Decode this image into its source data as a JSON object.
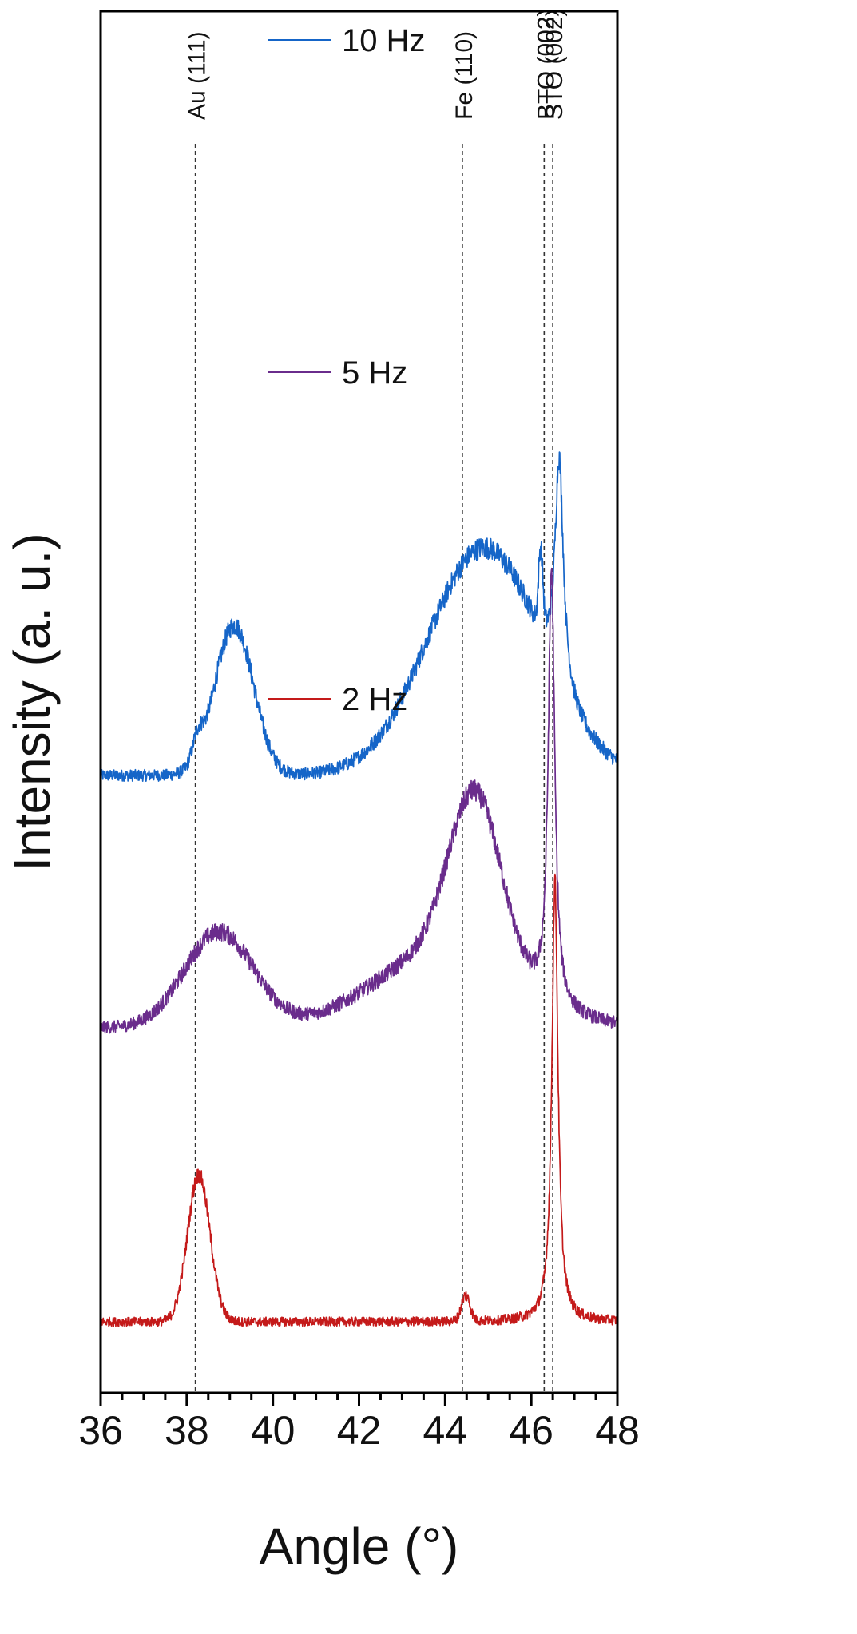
{
  "chart_data": {
    "type": "line",
    "xlabel": "Angle (°)",
    "ylabel": "Intensity (a. u.)",
    "xlim": [
      36,
      48
    ],
    "x_ticks": [
      36,
      38,
      40,
      42,
      44,
      46,
      48
    ],
    "y_ticks": [],
    "grid": false,
    "legend": "inline-labels",
    "series": [
      {
        "name": "10 Hz",
        "color": "#1565c8",
        "offset": 8.2,
        "baseline": 0.35,
        "noise": 0.09,
        "peaks": [
          {
            "center": 38.25,
            "height": 0.35,
            "width": 0.12,
            "shape": "gaussian"
          },
          {
            "center": 39.1,
            "height": 2.35,
            "width": 0.45,
            "shape": "gaussian"
          },
          {
            "center": 44.9,
            "height": 3.55,
            "width": 1.3,
            "shape": "gaussian"
          },
          {
            "center": 46.22,
            "height": 1.2,
            "width": 0.05,
            "shape": "gaussian"
          },
          {
            "center": 46.65,
            "height": 3.55,
            "width": 0.12,
            "shape": "lorentzian"
          }
        ]
      },
      {
        "name": "5 Hz",
        "color": "#6a2c8c",
        "offset": 4.3,
        "baseline": 0.3,
        "noise": 0.09,
        "peaks": [
          {
            "center": 38.75,
            "height": 1.5,
            "width": 0.8,
            "shape": "gaussian"
          },
          {
            "center": 44.7,
            "height": 2.6,
            "width": 0.6,
            "shape": "gaussian"
          },
          {
            "center": 44.0,
            "height": 1.2,
            "width": 1.6,
            "shape": "gaussian"
          },
          {
            "center": 46.47,
            "height": 6.8,
            "width": 0.09,
            "shape": "lorentzian"
          }
        ]
      },
      {
        "name": "2 Hz",
        "color": "#c41a1a",
        "offset": 0.0,
        "baseline": 0.0,
        "noise": 0.07,
        "peaks": [
          {
            "center": 38.28,
            "height": 2.3,
            "width": 0.26,
            "shape": "gaussian"
          },
          {
            "center": 44.48,
            "height": 0.4,
            "width": 0.1,
            "shape": "gaussian"
          },
          {
            "center": 46.55,
            "height": 6.9,
            "width": 0.085,
            "shape": "lorentzian"
          }
        ]
      }
    ],
    "reference_lines": [
      {
        "label": "Au (111)",
        "x": 38.2
      },
      {
        "label": "Fe (110)",
        "x": 44.4
      },
      {
        "label": "BTO (002)",
        "x": 46.3
      },
      {
        "label": "STO (002)",
        "x": 46.5
      }
    ]
  }
}
